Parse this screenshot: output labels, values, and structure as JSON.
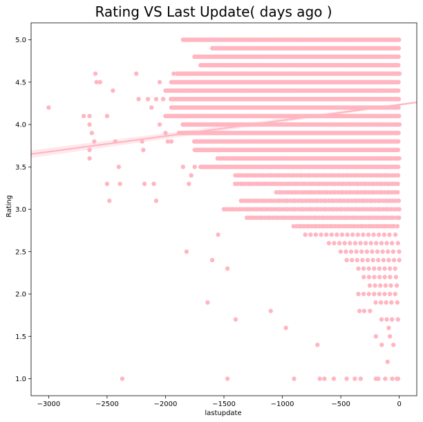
{
  "chart_data": {
    "type": "scatter",
    "title": "Rating  VS Last Update( days ago )",
    "xlabel": "lastupdate",
    "ylabel": "Rating",
    "xlim": [
      -3150,
      150
    ],
    "ylim": [
      0.8,
      5.2
    ],
    "xticks": [
      -3000,
      -2500,
      -2000,
      -1500,
      -1000,
      -500,
      0
    ],
    "xtick_labels": [
      "−3000",
      "−2500",
      "−2000",
      "−1500",
      "−1000",
      "−500",
      "0"
    ],
    "yticks": [
      1.0,
      1.5,
      2.0,
      2.5,
      3.0,
      3.5,
      4.0,
      4.5,
      5.0
    ],
    "ytick_labels": [
      "1.0",
      "1.5",
      "2.0",
      "2.5",
      "3.0",
      "3.5",
      "4.0",
      "4.5",
      "5.0"
    ],
    "grid": false,
    "colors": {
      "points": "#ffb6c1",
      "regression": "#ffb6c1",
      "confidence": "#ffe4e9"
    },
    "series": [
      {
        "points": [
          [
            -3000,
            4.2
          ],
          [
            -2700,
            4.1
          ],
          [
            -2650,
            4.1
          ],
          [
            -2600,
            4.6
          ],
          [
            -2590,
            4.5
          ],
          [
            -2560,
            4.5
          ],
          [
            -2650,
            4.0
          ],
          [
            -2630,
            3.9
          ],
          [
            -2610,
            3.8
          ],
          [
            -2650,
            3.7
          ],
          [
            -2650,
            3.6
          ],
          [
            -2500,
            4.1
          ],
          [
            -2450,
            4.4
          ],
          [
            -2430,
            3.8
          ],
          [
            -2400,
            3.5
          ],
          [
            -2390,
            3.3
          ],
          [
            -2500,
            3.3
          ],
          [
            -2480,
            3.1
          ],
          [
            -2250,
            4.6
          ],
          [
            -2230,
            4.3
          ],
          [
            -2200,
            3.8
          ],
          [
            -2190,
            3.7
          ],
          [
            -2150,
            4.3
          ],
          [
            -2120,
            4.2
          ],
          [
            -2080,
            4.3
          ],
          [
            -2050,
            4.0
          ],
          [
            -2000,
            3.9
          ],
          [
            -2180,
            3.3
          ],
          [
            -2100,
            3.3
          ],
          [
            -2080,
            3.1
          ],
          [
            -2050,
            4.5
          ],
          [
            -2020,
            4.3
          ],
          [
            -1980,
            3.8
          ],
          [
            -1950,
            3.8
          ],
          [
            -1930,
            4.6
          ],
          [
            -1900,
            4.4
          ],
          [
            -1850,
            3.5
          ],
          [
            -1820,
            2.5
          ],
          [
            -1800,
            3.3
          ],
          [
            -1780,
            3.4
          ],
          [
            -1750,
            3.5
          ],
          [
            -2370,
            1.0
          ],
          [
            -1640,
            1.9
          ],
          [
            -1600,
            2.4
          ],
          [
            -1470,
            2.3
          ],
          [
            -1550,
            2.7
          ],
          [
            -1400,
            1.7
          ],
          [
            -1470,
            1.0
          ],
          [
            -1100,
            1.8
          ],
          [
            -970,
            1.6
          ],
          [
            -900,
            1.0
          ],
          [
            -700,
            1.4
          ],
          [
            -680,
            1.0
          ],
          [
            -640,
            1.0
          ],
          [
            -560,
            1.0
          ],
          [
            -450,
            1.0
          ],
          [
            -380,
            1.0
          ],
          [
            -330,
            1.0
          ],
          [
            -200,
            1.0
          ],
          [
            -180,
            1.0
          ],
          [
            -120,
            1.0
          ],
          [
            -60,
            1.0
          ],
          [
            -20,
            1.0
          ],
          [
            -10,
            1.0
          ],
          [
            -150,
            1.4
          ],
          [
            -50,
            1.4
          ],
          [
            -100,
            1.2
          ],
          [
            -90,
            1.6
          ],
          [
            -80,
            1.5
          ],
          [
            -300,
            1.8
          ],
          [
            -340,
            1.8
          ],
          [
            -200,
            1.5
          ],
          [
            -250,
            1.8
          ]
        ]
      }
    ],
    "regression": {
      "x": [
        -3150,
        150
      ],
      "y": [
        3.651,
        4.262
      ]
    }
  }
}
